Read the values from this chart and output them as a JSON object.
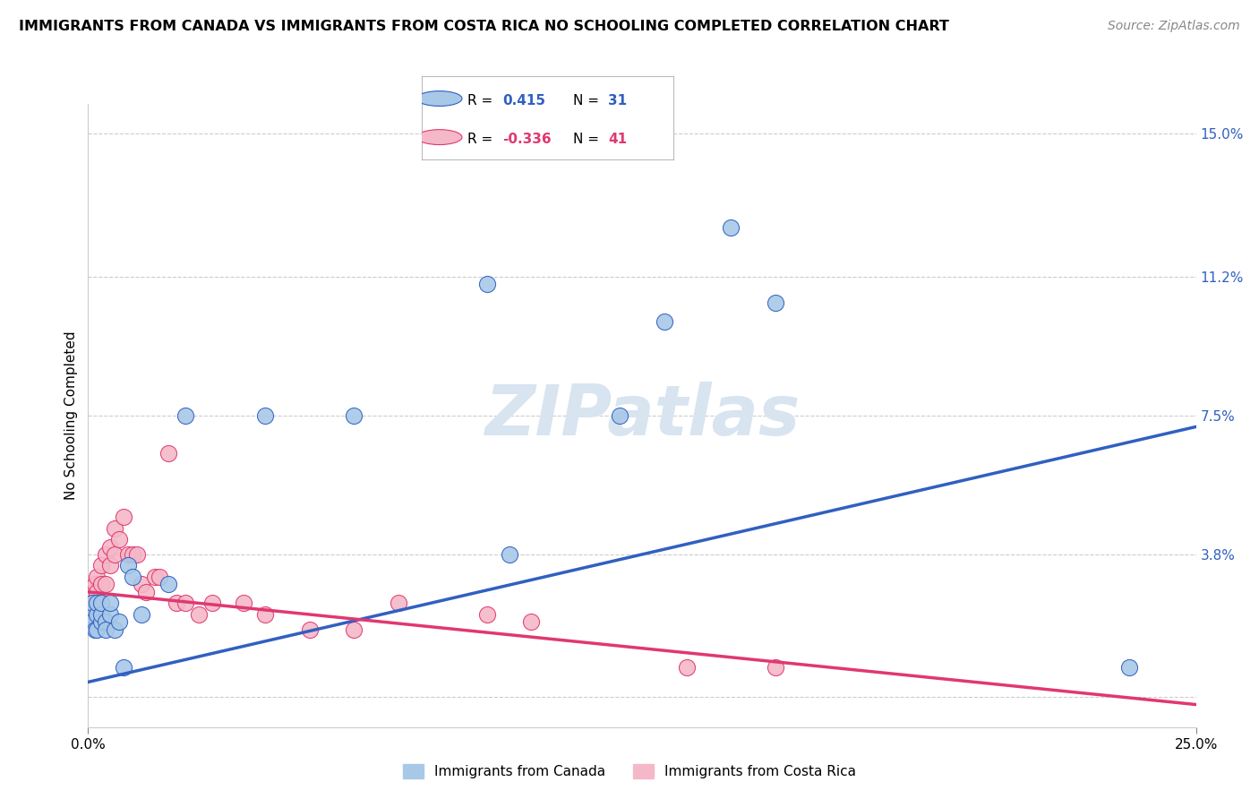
{
  "title": "IMMIGRANTS FROM CANADA VS IMMIGRANTS FROM COSTA RICA NO SCHOOLING COMPLETED CORRELATION CHART",
  "source": "Source: ZipAtlas.com",
  "ylabel": "No Schooling Completed",
  "xlim": [
    0.0,
    0.25
  ],
  "ylim": [
    -0.008,
    0.158
  ],
  "yticks": [
    0.0,
    0.038,
    0.075,
    0.112,
    0.15
  ],
  "ytick_labels": [
    "",
    "3.8%",
    "7.5%",
    "11.2%",
    "15.0%"
  ],
  "xticks": [
    0.0,
    0.25
  ],
  "xtick_labels": [
    "0.0%",
    "25.0%"
  ],
  "canada_R": 0.415,
  "canada_N": 31,
  "costarica_R": -0.336,
  "costarica_N": 41,
  "canada_color": "#a8c8e8",
  "costarica_color": "#f4b8c8",
  "canada_line_color": "#3060c0",
  "costarica_line_color": "#e03870",
  "watermark_color": "#d8e4f0",
  "canada_x": [
    0.0005,
    0.001,
    0.001,
    0.0015,
    0.002,
    0.002,
    0.002,
    0.003,
    0.003,
    0.003,
    0.004,
    0.004,
    0.005,
    0.005,
    0.006,
    0.007,
    0.008,
    0.009,
    0.01,
    0.012,
    0.018,
    0.022,
    0.04,
    0.06,
    0.09,
    0.095,
    0.12,
    0.13,
    0.145,
    0.155,
    0.235
  ],
  "canada_y": [
    0.022,
    0.02,
    0.025,
    0.018,
    0.022,
    0.025,
    0.018,
    0.02,
    0.022,
    0.025,
    0.02,
    0.018,
    0.022,
    0.025,
    0.018,
    0.02,
    0.008,
    0.035,
    0.032,
    0.022,
    0.03,
    0.075,
    0.075,
    0.075,
    0.11,
    0.038,
    0.075,
    0.1,
    0.125,
    0.105,
    0.008
  ],
  "costarica_x": [
    0.0005,
    0.0005,
    0.001,
    0.001,
    0.001,
    0.001,
    0.0015,
    0.002,
    0.002,
    0.002,
    0.003,
    0.003,
    0.004,
    0.004,
    0.005,
    0.005,
    0.006,
    0.006,
    0.007,
    0.008,
    0.009,
    0.01,
    0.011,
    0.012,
    0.013,
    0.015,
    0.016,
    0.018,
    0.02,
    0.022,
    0.025,
    0.028,
    0.035,
    0.04,
    0.05,
    0.06,
    0.07,
    0.09,
    0.1,
    0.135,
    0.155
  ],
  "costarica_y": [
    0.022,
    0.025,
    0.02,
    0.022,
    0.025,
    0.028,
    0.03,
    0.025,
    0.028,
    0.032,
    0.03,
    0.035,
    0.03,
    0.038,
    0.035,
    0.04,
    0.038,
    0.045,
    0.042,
    0.048,
    0.038,
    0.038,
    0.038,
    0.03,
    0.028,
    0.032,
    0.032,
    0.065,
    0.025,
    0.025,
    0.022,
    0.025,
    0.025,
    0.022,
    0.018,
    0.018,
    0.025,
    0.022,
    0.02,
    0.008,
    0.008
  ],
  "canada_line_start_y": 0.004,
  "canada_line_end_y": 0.072,
  "costarica_line_start_y": 0.028,
  "costarica_line_end_y": -0.002
}
